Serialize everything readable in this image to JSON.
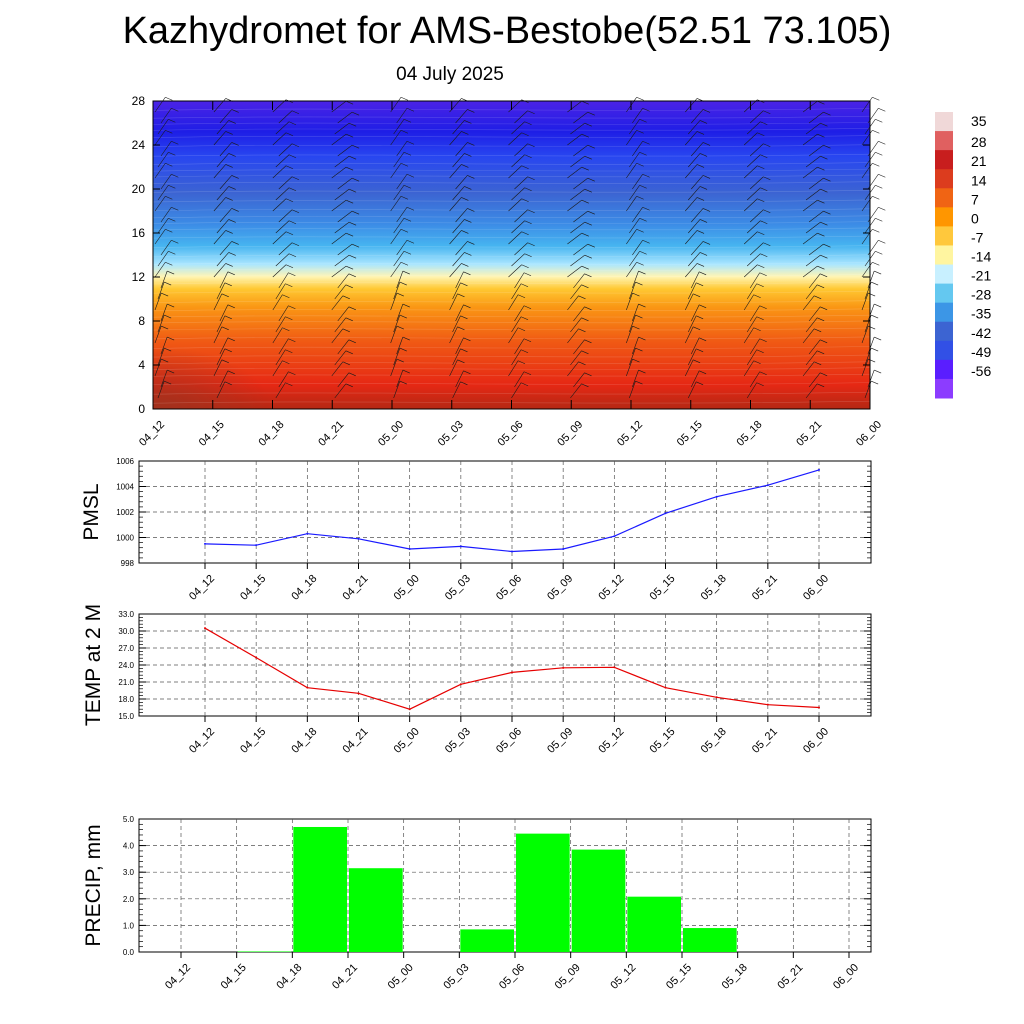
{
  "header": {
    "title": "Kazhydromet for AMS-Bestobe(52.51 73.105)",
    "date": "04 July 2025"
  },
  "colors": {
    "pmsl_line": "#1a1aff",
    "temp_line": "#e60000",
    "precip_bar": "#00ff00",
    "grid": "#555555"
  },
  "chart_data": [
    {
      "type": "heatmap",
      "title": "",
      "x_ticks": [
        "04_12",
        "04_15",
        "04_18",
        "04_21",
        "05_00",
        "05_03",
        "05_06",
        "05_09",
        "05_12",
        "05_15",
        "05_18",
        "05_21",
        "06_00"
      ],
      "y_ticks": [
        0,
        4,
        8,
        12,
        16,
        20,
        24,
        28
      ],
      "ylim": [
        0,
        28
      ],
      "colorbar": {
        "labels": [
          "35",
          "28",
          "21",
          "14",
          "7",
          "0",
          "-7",
          "-14",
          "-21",
          "-28",
          "-35",
          "-42",
          "-49",
          "-56"
        ],
        "colors": [
          "#f0d8d8",
          "#e06060",
          "#c81e1e",
          "#dc3c1e",
          "#f06414",
          "#ff9600",
          "#ffc83c",
          "#fff5a0",
          "#c8f0ff",
          "#64c8f0",
          "#3c96e6",
          "#3c64d2",
          "#3250e6",
          "#5a1eff",
          "#8c3cff"
        ]
      },
      "overlay": "wind barbs"
    },
    {
      "type": "line",
      "ylabel": "PMSL",
      "categories": [
        "04_12",
        "04_15",
        "04_18",
        "04_21",
        "05_00",
        "05_03",
        "05_06",
        "05_09",
        "05_12",
        "05_15",
        "05_18",
        "05_21",
        "06_00"
      ],
      "values": [
        999.5,
        999.4,
        1000.3,
        999.9,
        999.1,
        999.3,
        998.9,
        999.1,
        1000.1,
        1001.9,
        1003.2,
        1004.1,
        1005.3
      ],
      "ylim": [
        998,
        1006
      ],
      "y_ticks": [
        "998",
        "1000",
        "1002",
        "1004",
        "1006"
      ],
      "grid": true
    },
    {
      "type": "line",
      "ylabel": "TEMP at 2 M",
      "categories": [
        "04_12",
        "04_15",
        "04_18",
        "04_21",
        "05_00",
        "05_03",
        "05_06",
        "05_09",
        "05_12",
        "05_15",
        "05_18",
        "05_21",
        "06_00"
      ],
      "values": [
        30.5,
        25.3,
        20.0,
        19.0,
        16.2,
        20.6,
        22.7,
        23.5,
        23.6,
        20.0,
        18.3,
        17.0,
        16.5
      ],
      "ylim": [
        15,
        33
      ],
      "y_ticks": [
        "15.0",
        "18.0",
        "21.0",
        "24.0",
        "27.0",
        "30.0",
        "33.0"
      ],
      "grid": true
    },
    {
      "type": "bar",
      "ylabel": "PRECIP, mm",
      "categories": [
        "04_12",
        "04_15",
        "04_18",
        "04_21",
        "05_00",
        "05_03",
        "05_06",
        "05_09",
        "05_12",
        "05_15",
        "05_18",
        "05_21",
        "06_00"
      ],
      "values": [
        0,
        0.02,
        4.7,
        3.15,
        0,
        0.85,
        4.45,
        3.85,
        2.08,
        0.9,
        0,
        0,
        0
      ],
      "ylim": [
        0,
        5
      ],
      "y_ticks": [
        "0.0",
        "1.0",
        "2.0",
        "3.0",
        "4.0",
        "5.0"
      ],
      "grid": true
    }
  ]
}
